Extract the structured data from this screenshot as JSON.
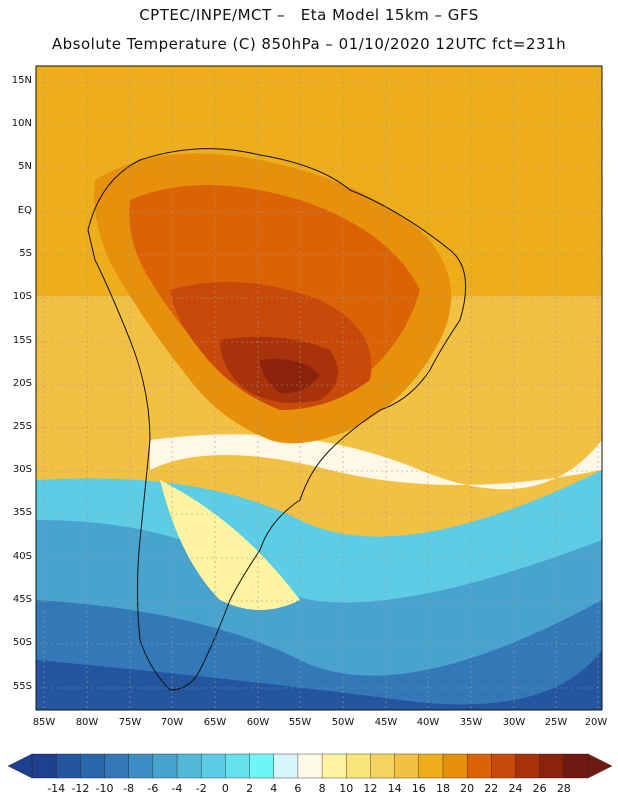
{
  "header": {
    "line1": "CPTEC/INPE/MCT –   Eta Model 15km – GFS",
    "line2": "Absolute Temperature (C) 850hPa – 01/10/2020 12UTC fct=231h"
  },
  "map": {
    "lat_labels": [
      "15N",
      "10N",
      "5N",
      "EQ",
      "5S",
      "10S",
      "15S",
      "20S",
      "25S",
      "30S",
      "35S",
      "40S",
      "45S",
      "50S",
      "55S"
    ],
    "lon_labels": [
      "85W",
      "80W",
      "75W",
      "70W",
      "65W",
      "60W",
      "55W",
      "50W",
      "45W",
      "40W",
      "35W",
      "30W",
      "25W",
      "20W"
    ]
  },
  "colorbar": {
    "labels": [
      "-14",
      "-12",
      "-10",
      "-8",
      "-6",
      "-4",
      "-2",
      "0",
      "2",
      "4",
      "6",
      "8",
      "10",
      "12",
      "14",
      "16",
      "18",
      "20",
      "22",
      "24",
      "26",
      "28"
    ],
    "colors": [
      "#1f3f8f",
      "#24559f",
      "#2a68ad",
      "#3379b8",
      "#3d8ec4",
      "#48a3cf",
      "#52b8da",
      "#5ccde4",
      "#66e2ee",
      "#70f5f7",
      "#d6f6fb",
      "#fff8e6",
      "#fdf3a1",
      "#fae57a",
      "#f6d35e",
      "#f2c143",
      "#eead1b",
      "#e69109",
      "#dc6206",
      "#c8490a",
      "#a8320a",
      "#8a220c",
      "#6e1a10"
    ]
  }
}
